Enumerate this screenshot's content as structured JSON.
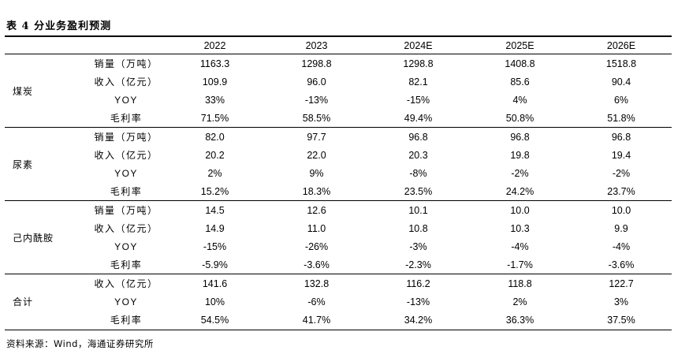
{
  "title": "表 4  分业务盈利预测",
  "header": {
    "blank": "",
    "years": [
      "2022",
      "2023",
      "2024E",
      "2025E",
      "2026E"
    ]
  },
  "groups": [
    {
      "segment": "煤炭",
      "rows": [
        {
          "metric": "销量（万吨）",
          "values": [
            "1163.3",
            "1298.8",
            "1298.8",
            "1408.8",
            "1518.8"
          ]
        },
        {
          "metric": "收入（亿元）",
          "values": [
            "109.9",
            "96.0",
            "82.1",
            "85.6",
            "90.4"
          ]
        },
        {
          "metric": "YOY",
          "values": [
            "33%",
            "-13%",
            "-15%",
            "4%",
            "6%"
          ]
        },
        {
          "metric": "毛利率",
          "values": [
            "71.5%",
            "58.5%",
            "49.4%",
            "50.8%",
            "51.8%"
          ]
        }
      ]
    },
    {
      "segment": "尿素",
      "rows": [
        {
          "metric": "销量（万吨）",
          "values": [
            "82.0",
            "97.7",
            "96.8",
            "96.8",
            "96.8"
          ]
        },
        {
          "metric": "收入（亿元）",
          "values": [
            "20.2",
            "22.0",
            "20.3",
            "19.8",
            "19.4"
          ]
        },
        {
          "metric": "YOY",
          "values": [
            "2%",
            "9%",
            "-8%",
            "-2%",
            "-2%"
          ]
        },
        {
          "metric": "毛利率",
          "values": [
            "15.2%",
            "18.3%",
            "23.5%",
            "24.2%",
            "23.7%"
          ]
        }
      ]
    },
    {
      "segment": "己内酰胺",
      "rows": [
        {
          "metric": "销量（万吨）",
          "values": [
            "14.5",
            "12.6",
            "10.1",
            "10.0",
            "10.0"
          ]
        },
        {
          "metric": "收入（亿元）",
          "values": [
            "14.9",
            "11.0",
            "10.8",
            "10.3",
            "9.9"
          ]
        },
        {
          "metric": "YOY",
          "values": [
            "-15%",
            "-26%",
            "-3%",
            "-4%",
            "-4%"
          ]
        },
        {
          "metric": "毛利率",
          "values": [
            "-5.9%",
            "-3.6%",
            "-2.3%",
            "-1.7%",
            "-3.6%"
          ]
        }
      ]
    },
    {
      "segment": "合计",
      "rows": [
        {
          "metric": "收入（亿元）",
          "values": [
            "141.6",
            "132.8",
            "116.2",
            "118.8",
            "122.7"
          ]
        },
        {
          "metric": "YOY",
          "values": [
            "10%",
            "-6%",
            "-13%",
            "2%",
            "3%"
          ]
        },
        {
          "metric": "毛利率",
          "values": [
            "54.5%",
            "41.7%",
            "34.2%",
            "36.3%",
            "37.5%"
          ]
        }
      ]
    }
  ],
  "source": "资料来源：Wind，海通证券研究所"
}
